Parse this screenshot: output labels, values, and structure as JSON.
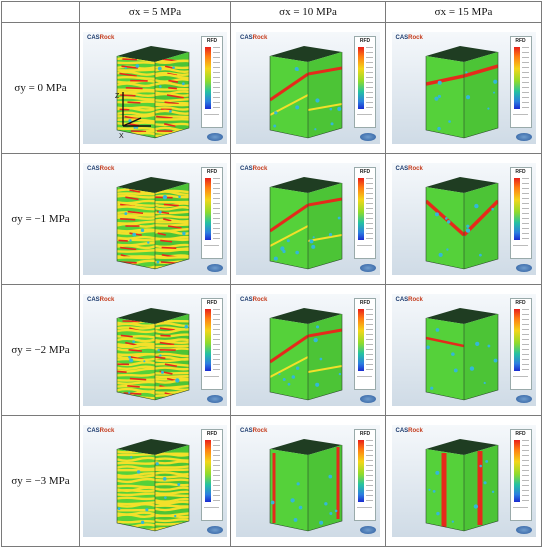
{
  "table": {
    "col_headers": [
      "σx = 5 MPa",
      "σx = 10 MPa",
      "σx = 15 MPa"
    ],
    "row_headers": [
      "σy = 0 MPa",
      "σy = −1 MPa",
      "σy = −2 MPa",
      "σy = −3 MPa"
    ]
  },
  "panel": {
    "logo_cas": "CAS",
    "logo_rock": "Rock",
    "colorbar_title": "RFD",
    "axis_labels": {
      "z": "Z",
      "x": "X"
    }
  },
  "colors": {
    "cube_top": "#1f3d22",
    "base_green": "#55d13a",
    "yellow_band": "#f3e02a",
    "red_band": "#e52a1b",
    "cyan_spot": "#33b8d8"
  },
  "cells": [
    [
      "dense-yellow-red",
      "diagonal-bands",
      "single-band"
    ],
    [
      "dense-yellow-red",
      "diagonal-bands",
      "v-shaped-band"
    ],
    [
      "dense-yellow-red",
      "diagonal-bands",
      "sparse"
    ],
    [
      "dense-yellow",
      "edge-bands",
      "column-red"
    ]
  ]
}
